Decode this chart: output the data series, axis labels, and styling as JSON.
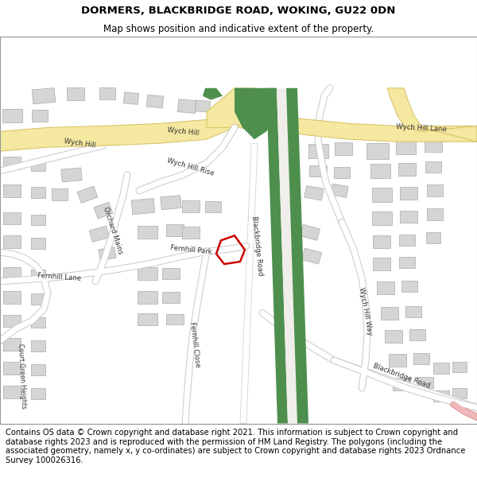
{
  "title": "DORMERS, BLACKBRIDGE ROAD, WOKING, GU22 0DN",
  "subtitle": "Map shows position and indicative extent of the property.",
  "footer": "Contains OS data © Crown copyright and database right 2021. This information is subject to Crown copyright and database rights 2023 and is reproduced with the permission of HM Land Registry. The polygons (including the associated geometry, namely x, y co-ordinates) are subject to Crown copyright and database rights 2023 Ordnance Survey 100026316.",
  "bg_map": "#f0eeea",
  "road_yellow_fill": "#f5e8a0",
  "road_yellow_edge": "#d4c060",
  "road_white_fill": "#ffffff",
  "road_white_edge": "#cccccc",
  "green_fill": "#4e8f4e",
  "building_fill": "#d5d5d5",
  "building_edge": "#aaaaaa",
  "red_plot": "#cc0000",
  "pink_fill": "#f0b8b8",
  "pink_edge": "#e09090",
  "label_color": "#333333",
  "title_fs": 9.5,
  "sub_fs": 8.5,
  "footer_fs": 7.2,
  "label_fs": 6.2
}
